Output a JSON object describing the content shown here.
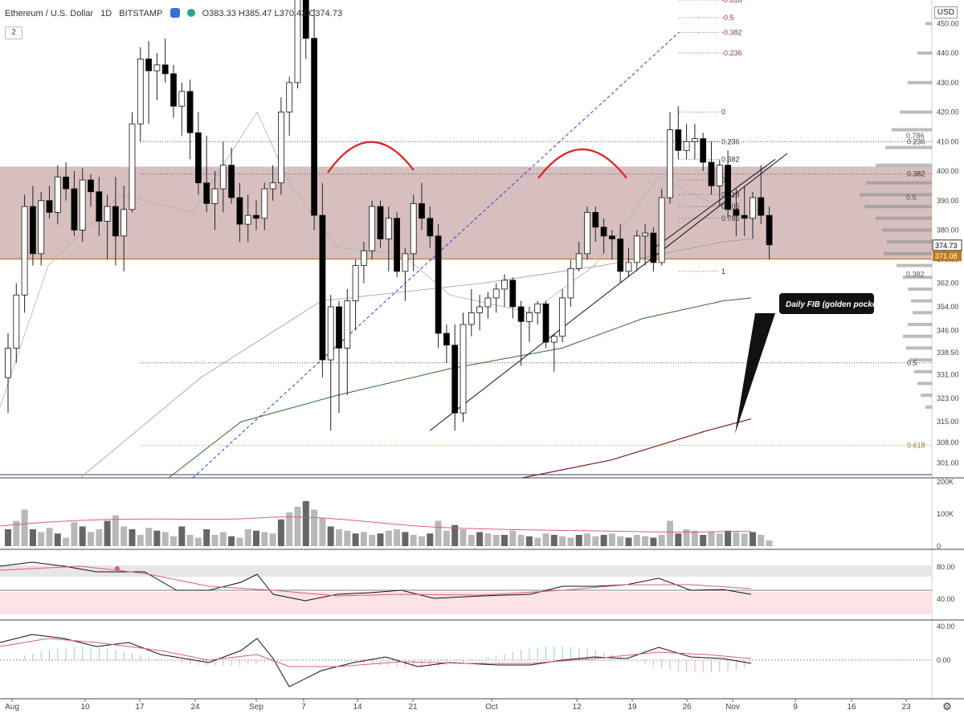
{
  "header": {
    "symbol": "Ethereum / U.S. Dollar",
    "interval": "1D",
    "exchange": "BITSTAMP",
    "ohlc": "O383.33 H385.47 L370.43 C374.73",
    "study_count": "2",
    "currency": "USD"
  },
  "colors": {
    "up": "#ffffff",
    "down": "#000000",
    "zone": "#c9a9ab",
    "fib_line": "#555555",
    "rsi_band": "#fbe3e6",
    "signal": "#e05a7a",
    "ma200": "#7a1c2c",
    "ma100": "#2f6b2f"
  },
  "chart_data": {
    "type": "candlestick",
    "x_axis_labels": [
      "Aug",
      "10",
      "17",
      "24",
      "Sep",
      "7",
      "14",
      "21",
      "Oct",
      "12",
      "19",
      "26",
      "Nov",
      "9",
      "16",
      "23"
    ],
    "price_axis_ticks": [
      "450.00",
      "440.00",
      "430.00",
      "420.00",
      "410.00",
      "400.00",
      "390.00",
      "380.00",
      "370.00",
      "362.00",
      "354.00",
      "346.00",
      "338.50",
      "331.00",
      "323.00",
      "315.00",
      "308.00",
      "301.00"
    ],
    "last_price": "374.73",
    "zone_price": "371.08",
    "ylim": [
      296,
      458
    ],
    "candles": [
      {
        "o": 330,
        "h": 345,
        "l": 318,
        "c": 340
      },
      {
        "o": 340,
        "h": 362,
        "l": 335,
        "c": 358
      },
      {
        "o": 358,
        "h": 392,
        "l": 352,
        "c": 388
      },
      {
        "o": 388,
        "h": 395,
        "l": 368,
        "c": 372
      },
      {
        "o": 372,
        "h": 393,
        "l": 368,
        "c": 390
      },
      {
        "o": 390,
        "h": 395,
        "l": 384,
        "c": 386
      },
      {
        "o": 386,
        "h": 402,
        "l": 382,
        "c": 398
      },
      {
        "o": 398,
        "h": 403,
        "l": 390,
        "c": 394
      },
      {
        "o": 394,
        "h": 400,
        "l": 378,
        "c": 380
      },
      {
        "o": 380,
        "h": 401,
        "l": 376,
        "c": 397
      },
      {
        "o": 397,
        "h": 399,
        "l": 388,
        "c": 393
      },
      {
        "o": 393,
        "h": 398,
        "l": 378,
        "c": 383
      },
      {
        "o": 383,
        "h": 392,
        "l": 370,
        "c": 388
      },
      {
        "o": 388,
        "h": 398,
        "l": 368,
        "c": 378
      },
      {
        "o": 378,
        "h": 395,
        "l": 366,
        "c": 387
      },
      {
        "o": 387,
        "h": 420,
        "l": 386,
        "c": 416
      },
      {
        "o": 416,
        "h": 442,
        "l": 410,
        "c": 438
      },
      {
        "o": 438,
        "h": 444,
        "l": 416,
        "c": 434
      },
      {
        "o": 434,
        "h": 440,
        "l": 424,
        "c": 436
      },
      {
        "o": 436,
        "h": 445,
        "l": 430,
        "c": 433
      },
      {
        "o": 433,
        "h": 436,
        "l": 418,
        "c": 422
      },
      {
        "o": 422,
        "h": 430,
        "l": 412,
        "c": 427
      },
      {
        "o": 427,
        "h": 431,
        "l": 404,
        "c": 413
      },
      {
        "o": 413,
        "h": 420,
        "l": 392,
        "c": 396
      },
      {
        "o": 396,
        "h": 412,
        "l": 386,
        "c": 389
      },
      {
        "o": 389,
        "h": 400,
        "l": 380,
        "c": 394
      },
      {
        "o": 394,
        "h": 410,
        "l": 386,
        "c": 402
      },
      {
        "o": 402,
        "h": 408,
        "l": 389,
        "c": 391
      },
      {
        "o": 391,
        "h": 396,
        "l": 376,
        "c": 382
      },
      {
        "o": 382,
        "h": 392,
        "l": 376,
        "c": 385
      },
      {
        "o": 385,
        "h": 390,
        "l": 380,
        "c": 384
      },
      {
        "o": 384,
        "h": 396,
        "l": 380,
        "c": 394
      },
      {
        "o": 394,
        "h": 402,
        "l": 390,
        "c": 396
      },
      {
        "o": 396,
        "h": 425,
        "l": 392,
        "c": 420
      },
      {
        "o": 420,
        "h": 432,
        "l": 412,
        "c": 430
      },
      {
        "o": 430,
        "h": 482,
        "l": 428,
        "c": 460
      },
      {
        "o": 460,
        "h": 478,
        "l": 438,
        "c": 445
      },
      {
        "o": 445,
        "h": 455,
        "l": 380,
        "c": 385
      },
      {
        "o": 385,
        "h": 396,
        "l": 330,
        "c": 336
      },
      {
        "o": 336,
        "h": 358,
        "l": 312,
        "c": 354
      },
      {
        "o": 354,
        "h": 356,
        "l": 318,
        "c": 340
      },
      {
        "o": 340,
        "h": 360,
        "l": 324,
        "c": 356
      },
      {
        "o": 356,
        "h": 370,
        "l": 346,
        "c": 368
      },
      {
        "o": 368,
        "h": 376,
        "l": 362,
        "c": 373
      },
      {
        "o": 373,
        "h": 390,
        "l": 370,
        "c": 388
      },
      {
        "o": 388,
        "h": 390,
        "l": 374,
        "c": 377
      },
      {
        "o": 377,
        "h": 388,
        "l": 366,
        "c": 384
      },
      {
        "o": 384,
        "h": 386,
        "l": 364,
        "c": 366
      },
      {
        "o": 366,
        "h": 374,
        "l": 356,
        "c": 372
      },
      {
        "o": 372,
        "h": 392,
        "l": 366,
        "c": 389
      },
      {
        "o": 389,
        "h": 396,
        "l": 380,
        "c": 384
      },
      {
        "o": 384,
        "h": 388,
        "l": 374,
        "c": 378
      },
      {
        "o": 378,
        "h": 382,
        "l": 340,
        "c": 345
      },
      {
        "o": 345,
        "h": 348,
        "l": 335,
        "c": 341
      },
      {
        "o": 341,
        "h": 348,
        "l": 312,
        "c": 318
      },
      {
        "o": 318,
        "h": 352,
        "l": 315,
        "c": 348
      },
      {
        "o": 348,
        "h": 360,
        "l": 344,
        "c": 352
      },
      {
        "o": 352,
        "h": 358,
        "l": 346,
        "c": 354
      },
      {
        "o": 354,
        "h": 359,
        "l": 350,
        "c": 357
      },
      {
        "o": 357,
        "h": 362,
        "l": 352,
        "c": 360
      },
      {
        "o": 360,
        "h": 365,
        "l": 354,
        "c": 363
      },
      {
        "o": 363,
        "h": 364,
        "l": 350,
        "c": 354
      },
      {
        "o": 354,
        "h": 356,
        "l": 334,
        "c": 349
      },
      {
        "o": 349,
        "h": 354,
        "l": 342,
        "c": 352
      },
      {
        "o": 352,
        "h": 356,
        "l": 348,
        "c": 355
      },
      {
        "o": 355,
        "h": 356,
        "l": 340,
        "c": 342
      },
      {
        "o": 342,
        "h": 345,
        "l": 332,
        "c": 344
      },
      {
        "o": 344,
        "h": 360,
        "l": 342,
        "c": 357
      },
      {
        "o": 357,
        "h": 370,
        "l": 354,
        "c": 367
      },
      {
        "o": 367,
        "h": 376,
        "l": 366,
        "c": 372
      },
      {
        "o": 372,
        "h": 388,
        "l": 370,
        "c": 386
      },
      {
        "o": 386,
        "h": 388,
        "l": 376,
        "c": 381
      },
      {
        "o": 381,
        "h": 384,
        "l": 372,
        "c": 378
      },
      {
        "o": 378,
        "h": 380,
        "l": 370,
        "c": 377
      },
      {
        "o": 377,
        "h": 382,
        "l": 362,
        "c": 366
      },
      {
        "o": 366,
        "h": 374,
        "l": 364,
        "c": 369
      },
      {
        "o": 369,
        "h": 380,
        "l": 366,
        "c": 378
      },
      {
        "o": 378,
        "h": 382,
        "l": 368,
        "c": 379
      },
      {
        "o": 379,
        "h": 381,
        "l": 366,
        "c": 369
      },
      {
        "o": 369,
        "h": 394,
        "l": 368,
        "c": 391
      },
      {
        "o": 391,
        "h": 420,
        "l": 389,
        "c": 414
      },
      {
        "o": 414,
        "h": 422,
        "l": 404,
        "c": 407
      },
      {
        "o": 407,
        "h": 416,
        "l": 404,
        "c": 410
      },
      {
        "o": 410,
        "h": 416,
        "l": 404,
        "c": 411
      },
      {
        "o": 411,
        "h": 413,
        "l": 400,
        "c": 403
      },
      {
        "o": 403,
        "h": 410,
        "l": 392,
        "c": 395
      },
      {
        "o": 395,
        "h": 404,
        "l": 388,
        "c": 402
      },
      {
        "o": 402,
        "h": 407,
        "l": 384,
        "c": 387
      },
      {
        "o": 387,
        "h": 394,
        "l": 378,
        "c": 385
      },
      {
        "o": 385,
        "h": 395,
        "l": 378,
        "c": 384
      },
      {
        "o": 384,
        "h": 393,
        "l": 377,
        "c": 391
      },
      {
        "o": 391,
        "h": 402,
        "l": 382,
        "c": 385
      },
      {
        "o": 385,
        "h": 388,
        "l": 370,
        "c": 375
      }
    ],
    "volume_axis_ticks": [
      "200K",
      "100K",
      "0"
    ],
    "rsi_axis_ticks": [
      "80.00",
      "40.00"
    ],
    "macd_axis_ticks": [
      "40.00",
      "0.00"
    ],
    "fib_levels_top": [
      "-0.618",
      "-0.5",
      "-0.382",
      "-0.236",
      "0",
      "0.236",
      "0.382",
      "0.5",
      "0.618",
      "0.705",
      "0.786",
      "1"
    ],
    "fib_levels_right": [
      "0.236",
      "0.382",
      "0.5",
      "0.618"
    ],
    "volume_profile_labels": [
      "0.786",
      "0.5",
      "0.382"
    ],
    "annotation": "Daily FIB (golden pocket)"
  }
}
